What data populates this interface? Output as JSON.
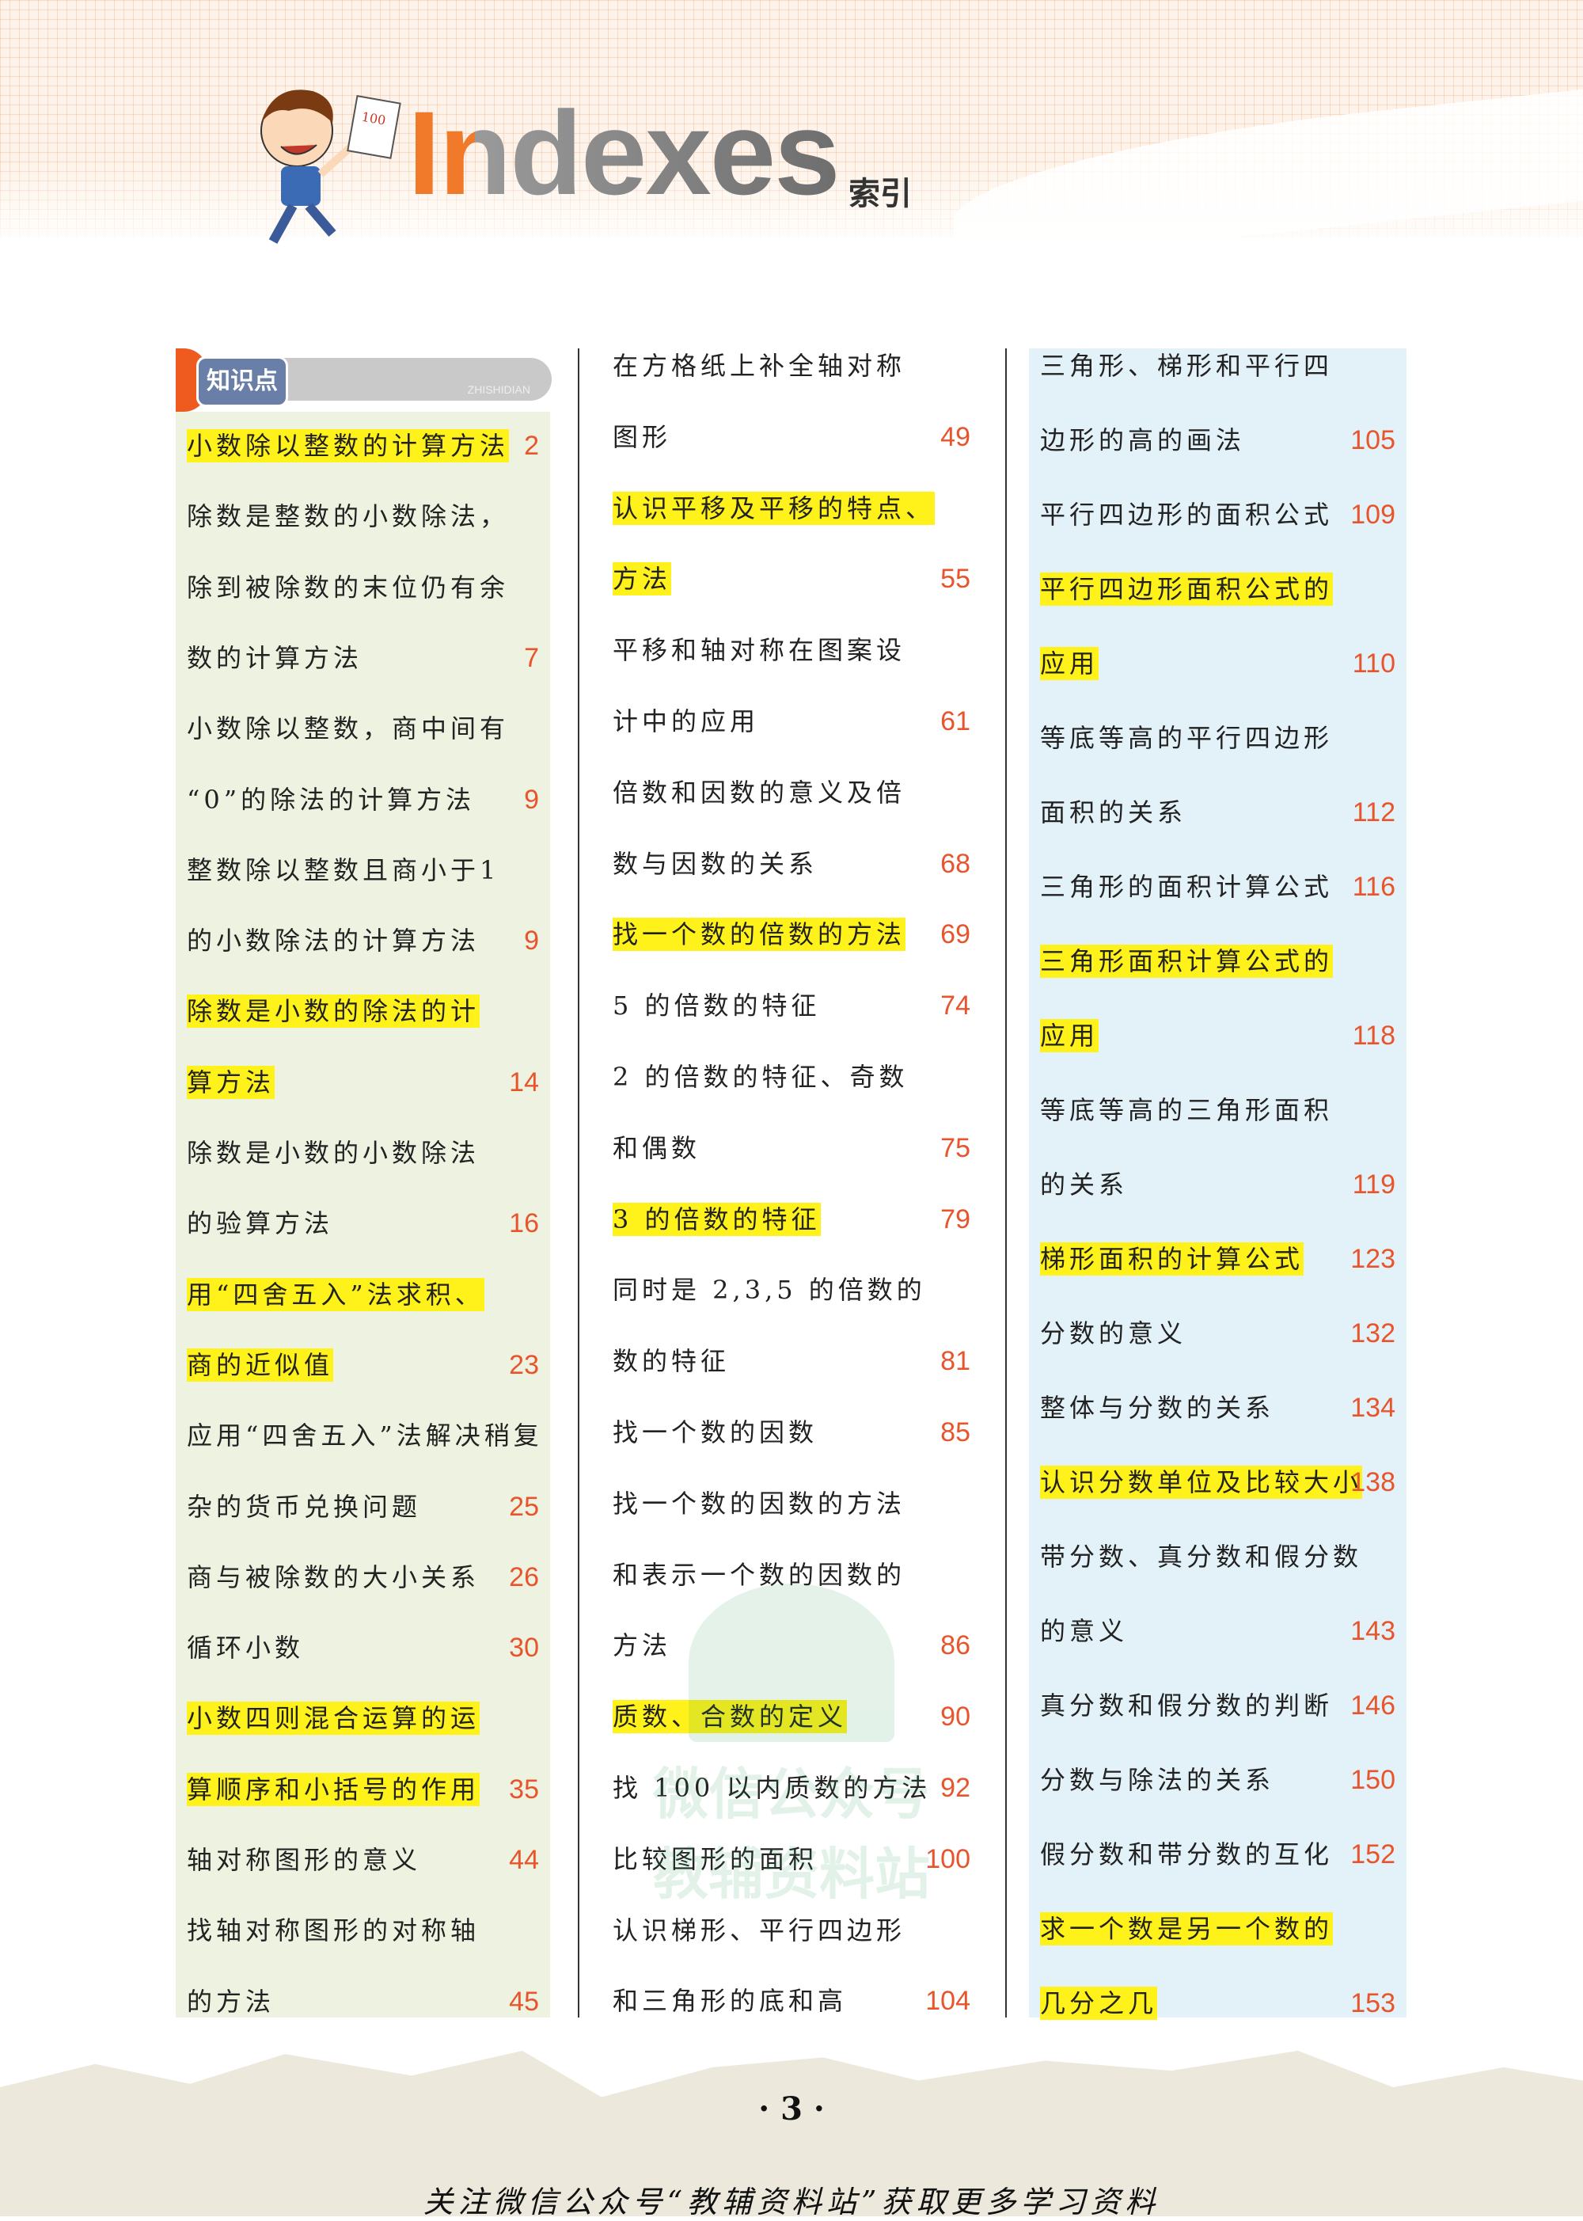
{
  "header": {
    "title": "Indexes",
    "title_cn": "索引"
  },
  "section_label": {
    "cn": "知识点",
    "en": "ZHISHIDIAN"
  },
  "colors": {
    "highlight": "#fff21a",
    "page_number": "#e8542c",
    "col1_bg": "#eef3e1",
    "col3_bg": "#e3f1f8"
  },
  "columns": [
    {
      "entries": [
        {
          "lines": [
            "小数除以整数的计算方法"
          ],
          "page": "2",
          "highlight": true
        },
        {
          "lines": [
            "除数是整数的小数除法，",
            "除到被除数的末位仍有余",
            "数的计算方法"
          ],
          "page": "7",
          "highlight": false
        },
        {
          "lines": [
            "小数除以整数，商中间有",
            "“0”的除法的计算方法"
          ],
          "page": "9",
          "highlight": false
        },
        {
          "lines": [
            "整数除以整数且商小于1",
            "的小数除法的计算方法"
          ],
          "page": "9",
          "highlight": false
        },
        {
          "lines": [
            "除数是小数的除法的计",
            "算方法"
          ],
          "page": "14",
          "highlight": true
        },
        {
          "lines": [
            "除数是小数的小数除法",
            "的验算方法"
          ],
          "page": "16",
          "highlight": false
        },
        {
          "lines": [
            "用“四舍五入”法求积、",
            "商的近似值"
          ],
          "page": "23",
          "highlight": true
        },
        {
          "lines": [
            "应用“四舍五入”法解决稍复",
            "杂的货币兑换问题"
          ],
          "page": "25",
          "highlight": false
        },
        {
          "lines": [
            "商与被除数的大小关系"
          ],
          "page": "26",
          "highlight": false
        },
        {
          "lines": [
            "循环小数"
          ],
          "page": "30",
          "highlight": false
        },
        {
          "lines": [
            "小数四则混合运算的运",
            "算顺序和小括号的作用"
          ],
          "page": "35",
          "highlight": true
        },
        {
          "lines": [
            "轴对称图形的意义"
          ],
          "page": "44",
          "highlight": false
        },
        {
          "lines": [
            "找轴对称图形的对称轴",
            "的方法"
          ],
          "page": "45",
          "highlight": false
        }
      ]
    },
    {
      "entries": [
        {
          "lines": [
            "在方格纸上补全轴对称",
            "图形"
          ],
          "page": "49",
          "highlight": false
        },
        {
          "lines": [
            "认识平移及平移的特点、",
            "方法"
          ],
          "page": "55",
          "highlight": true
        },
        {
          "lines": [
            "平移和轴对称在图案设",
            "计中的应用"
          ],
          "page": "61",
          "highlight": false
        },
        {
          "lines": [
            "倍数和因数的意义及倍",
            "数与因数的关系"
          ],
          "page": "68",
          "highlight": false
        },
        {
          "lines": [
            "找一个数的倍数的方法"
          ],
          "page": "69",
          "highlight": true
        },
        {
          "lines": [
            "5 的倍数的特征"
          ],
          "page": "74",
          "highlight": false
        },
        {
          "lines": [
            "2 的倍数的特征、奇数",
            "和偶数"
          ],
          "page": "75",
          "highlight": false
        },
        {
          "lines": [
            "3 的倍数的特征"
          ],
          "page": "79",
          "highlight": true
        },
        {
          "lines": [
            "同时是 2,3,5 的倍数的",
            "数的特征"
          ],
          "page": "81",
          "highlight": false
        },
        {
          "lines": [
            "找一个数的因数"
          ],
          "page": "85",
          "highlight": false
        },
        {
          "lines": [
            "找一个数的因数的方法",
            "和表示一个数的因数的",
            "方法"
          ],
          "page": "86",
          "highlight": false
        },
        {
          "lines": [
            "质数、合数的定义"
          ],
          "page": "90",
          "highlight": true
        },
        {
          "lines": [
            "找 100 以内质数的方法"
          ],
          "page": "92",
          "highlight": false
        },
        {
          "lines": [
            "比较图形的面积"
          ],
          "page": "100",
          "highlight": false
        },
        {
          "lines": [
            "认识梯形、平行四边形",
            "和三角形的底和高"
          ],
          "page": "104",
          "highlight": false
        }
      ]
    },
    {
      "entries": [
        {
          "lines": [
            "三角形、梯形和平行四",
            "边形的高的画法"
          ],
          "page": "105",
          "highlight": false
        },
        {
          "lines": [
            "平行四边形的面积公式"
          ],
          "page": "109",
          "highlight": false
        },
        {
          "lines": [
            "平行四边形面积公式的",
            "应用"
          ],
          "page": "110",
          "highlight": true
        },
        {
          "lines": [
            "等底等高的平行四边形",
            "面积的关系"
          ],
          "page": "112",
          "highlight": false
        },
        {
          "lines": [
            "三角形的面积计算公式"
          ],
          "page": "116",
          "highlight": false
        },
        {
          "lines": [
            "三角形面积计算公式的",
            "应用"
          ],
          "page": "118",
          "highlight": true
        },
        {
          "lines": [
            "等底等高的三角形面积",
            "的关系"
          ],
          "page": "119",
          "highlight": false
        },
        {
          "lines": [
            "梯形面积的计算公式"
          ],
          "page": "123",
          "highlight": true
        },
        {
          "lines": [
            "分数的意义"
          ],
          "page": "132",
          "highlight": false
        },
        {
          "lines": [
            "整体与分数的关系"
          ],
          "page": "134",
          "highlight": false
        },
        {
          "lines": [
            "认识分数单位及比较大小"
          ],
          "page": "138",
          "highlight": true
        },
        {
          "lines": [
            "带分数、真分数和假分数",
            "的意义"
          ],
          "page": "143",
          "highlight": false
        },
        {
          "lines": [
            "真分数和假分数的判断"
          ],
          "page": "146",
          "highlight": false
        },
        {
          "lines": [
            "分数与除法的关系"
          ],
          "page": "150",
          "highlight": false
        },
        {
          "lines": [
            "假分数和带分数的互化"
          ],
          "page": "152",
          "highlight": false
        },
        {
          "lines": [
            "求一个数是另一个数的",
            "几分之几"
          ],
          "page": "153",
          "highlight": true
        }
      ]
    }
  ],
  "watermark": {
    "line1": "微信公众号",
    "line2": "教辅资料站"
  },
  "footer": {
    "page_number": "· 3 ·",
    "slogan": "关注微信公众号“教辅资料站”获取更多学习资料"
  }
}
